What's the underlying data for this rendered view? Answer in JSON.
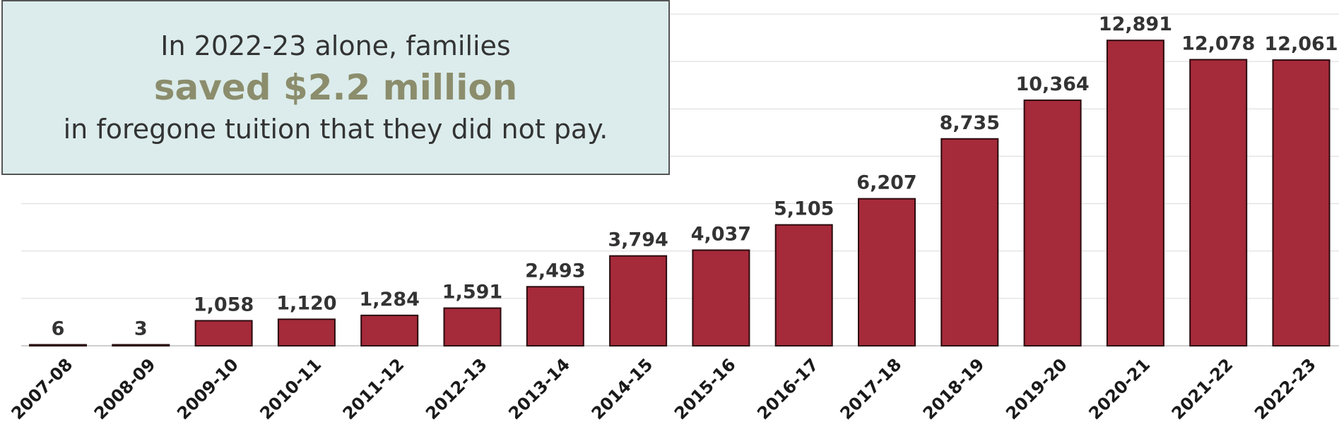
{
  "callout": {
    "line1": "In 2022-23 alone, families",
    "line2": "saved $2.2 million",
    "line3": "in foregone tuition that they did not pay.",
    "background_color": "#dcecec",
    "highlight_color": "#8b8d6c"
  },
  "chart_data": {
    "type": "bar",
    "title": "",
    "xlabel": "",
    "ylabel": "",
    "categories": [
      "2007-08",
      "2008-09",
      "2009-10",
      "2010-11",
      "2011-12",
      "2012-13",
      "2013-14",
      "2014-15",
      "2015-16",
      "2016-17",
      "2017-18",
      "2018-19",
      "2019-20",
      "2020-21",
      "2021-22",
      "2022-23"
    ],
    "values": [
      6,
      3,
      1058,
      1120,
      1284,
      1591,
      2493,
      3794,
      4037,
      5105,
      6207,
      8735,
      10364,
      12891,
      12078,
      12061
    ],
    "value_labels": [
      "6",
      "3",
      "1,058",
      "1,120",
      "1,284",
      "1,591",
      "2,493",
      "3,794",
      "4,037",
      "5,105",
      "6,207",
      "8,735",
      "10,364",
      "12,891",
      "12,078",
      "12,061"
    ],
    "ylim": [
      0,
      14000
    ],
    "gridlines": true,
    "legend": "none",
    "bar_color": "#a52a3a",
    "y_axis_visible": false
  }
}
